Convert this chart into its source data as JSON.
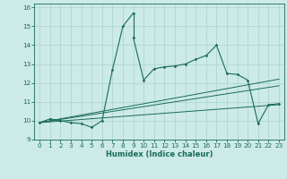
{
  "xlabel": "Humidex (Indice chaleur)",
  "ylabel": "",
  "bg_color": "#cceae7",
  "line_color": "#1a6b5a",
  "grid_color": "#aad4cf",
  "xlim": [
    -0.5,
    23.5
  ],
  "ylim": [
    9.0,
    16.2
  ],
  "xticks": [
    0,
    1,
    2,
    3,
    4,
    5,
    6,
    7,
    8,
    9,
    10,
    11,
    12,
    13,
    14,
    15,
    16,
    17,
    18,
    19,
    20,
    21,
    22,
    23
  ],
  "yticks": [
    9,
    10,
    11,
    12,
    13,
    14,
    15,
    16
  ],
  "series1": [
    [
      0,
      9.9
    ],
    [
      1,
      10.1
    ],
    [
      2,
      10.0
    ],
    [
      3,
      9.9
    ],
    [
      4,
      9.85
    ],
    [
      5,
      9.65
    ],
    [
      6,
      10.0
    ],
    [
      7,
      12.7
    ],
    [
      8,
      15.0
    ],
    [
      9,
      15.7
    ]
  ],
  "series2": [
    [
      9,
      14.4
    ],
    [
      10,
      12.15
    ],
    [
      11,
      12.75
    ],
    [
      12,
      12.85
    ],
    [
      13,
      12.9
    ],
    [
      14,
      13.0
    ],
    [
      15,
      13.25
    ],
    [
      16,
      13.45
    ],
    [
      17,
      14.0
    ],
    [
      18,
      12.5
    ],
    [
      19,
      12.45
    ],
    [
      20,
      12.15
    ],
    [
      21,
      9.85
    ],
    [
      22,
      10.85
    ],
    [
      23,
      10.9
    ]
  ],
  "trend_lines": [
    [
      [
        0,
        9.9
      ],
      [
        23,
        12.2
      ]
    ],
    [
      [
        0,
        9.9
      ],
      [
        23,
        11.85
      ]
    ],
    [
      [
        0,
        9.9
      ],
      [
        23,
        10.85
      ]
    ]
  ],
  "xlabel_fontsize": 6.0,
  "tick_fontsize": 5.2
}
